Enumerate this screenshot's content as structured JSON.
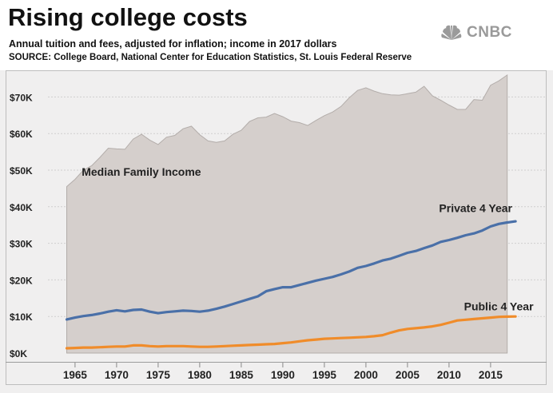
{
  "header": {
    "title": "Rising college costs",
    "subtitle": "Annual tuition and fees, adjusted for inflation; income in 2017 dollars",
    "source": "SOURCE: College Board, National Center for Education Statistics, St. Louis Federal Reserve",
    "logo_text": "CNBC"
  },
  "colors": {
    "income_fill": "#d5cfcc",
    "income_stroke": "#b3adaa",
    "private": "#4a70a8",
    "public": "#f08c2a",
    "plot_bg": "#f0efef",
    "grid": "#cfcfcf"
  },
  "chart_data": {
    "type": "area",
    "xlim": [
      1960,
      2021
    ],
    "ylim": [
      0,
      80000
    ],
    "ytick_values": [
      0,
      10000,
      20000,
      30000,
      40000,
      50000,
      60000,
      70000
    ],
    "ytick_labels": [
      "$0K",
      "$10K",
      "$20K",
      "$30K",
      "$40K",
      "$50K",
      "$60K",
      "$70K"
    ],
    "xtick_values": [
      1965,
      1970,
      1975,
      1980,
      1985,
      1990,
      1995,
      2000,
      2005,
      2010,
      2015
    ],
    "xtick_labels": [
      "1965",
      "1970",
      "1975",
      "1980",
      "1985",
      "1990",
      "1995",
      "2000",
      "2005",
      "2010",
      "2015"
    ],
    "grid": true,
    "series": [
      {
        "name": "Median Family Income",
        "kind": "area",
        "x": [
          1964,
          1965,
          1966,
          1967,
          1968,
          1969,
          1970,
          1971,
          1972,
          1973,
          1974,
          1975,
          1976,
          1977,
          1978,
          1979,
          1980,
          1981,
          1982,
          1983,
          1984,
          1985,
          1986,
          1987,
          1988,
          1989,
          1990,
          1991,
          1992,
          1993,
          1994,
          1995,
          1996,
          1997,
          1998,
          1999,
          2000,
          2001,
          2002,
          2003,
          2004,
          2005,
          2006,
          2007,
          2008,
          2009,
          2010,
          2011,
          2012,
          2013,
          2014,
          2015,
          2016,
          2017
        ],
        "values": [
          45500,
          47500,
          50000,
          51200,
          53500,
          56000,
          55800,
          55700,
          58500,
          59800,
          58200,
          57000,
          59000,
          59500,
          61300,
          62000,
          59700,
          58000,
          57600,
          58000,
          59800,
          60900,
          63300,
          64300,
          64500,
          65500,
          64600,
          63400,
          63000,
          62200,
          63600,
          64900,
          65900,
          67400,
          69800,
          71800,
          72500,
          71600,
          70900,
          70600,
          70500,
          70900,
          71300,
          72900,
          70300,
          69100,
          67800,
          66600,
          66600,
          69300,
          69100,
          73200,
          74400,
          76000
        ]
      },
      {
        "name": "Private 4 Year",
        "kind": "line",
        "x": [
          1964,
          1965,
          1966,
          1967,
          1968,
          1969,
          1970,
          1971,
          1972,
          1973,
          1974,
          1975,
          1976,
          1977,
          1978,
          1979,
          1980,
          1981,
          1982,
          1983,
          1984,
          1985,
          1986,
          1987,
          1988,
          1989,
          1990,
          1991,
          1992,
          1993,
          1994,
          1995,
          1996,
          1997,
          1998,
          1999,
          2000,
          2001,
          2002,
          2003,
          2004,
          2005,
          2006,
          2007,
          2008,
          2009,
          2010,
          2011,
          2012,
          2013,
          2014,
          2015,
          2016,
          2017,
          2018
        ],
        "values": [
          9200,
          9700,
          10100,
          10400,
          10800,
          11300,
          11700,
          11400,
          11800,
          11900,
          11300,
          10900,
          11200,
          11400,
          11600,
          11500,
          11300,
          11600,
          12100,
          12700,
          13400,
          14100,
          14800,
          15500,
          16900,
          17500,
          18000,
          18000,
          18600,
          19200,
          19800,
          20300,
          20800,
          21500,
          22300,
          23300,
          23800,
          24500,
          25300,
          25800,
          26600,
          27400,
          27900,
          28700,
          29400,
          30400,
          30900,
          31500,
          32200,
          32700,
          33500,
          34600,
          35300,
          35700,
          36000
        ]
      },
      {
        "name": "Public 4 Year",
        "kind": "line",
        "x": [
          1964,
          1965,
          1966,
          1967,
          1968,
          1969,
          1970,
          1971,
          1972,
          1973,
          1974,
          1975,
          1976,
          1977,
          1978,
          1979,
          1980,
          1981,
          1982,
          1983,
          1984,
          1985,
          1986,
          1987,
          1988,
          1989,
          1990,
          1991,
          1992,
          1993,
          1994,
          1995,
          1996,
          1997,
          1998,
          1999,
          2000,
          2001,
          2002,
          2003,
          2004,
          2005,
          2006,
          2007,
          2008,
          2009,
          2010,
          2011,
          2012,
          2013,
          2014,
          2015,
          2016,
          2017,
          2018
        ],
        "values": [
          1300,
          1400,
          1500,
          1500,
          1600,
          1700,
          1800,
          1800,
          2100,
          2100,
          1900,
          1800,
          1900,
          1900,
          1900,
          1800,
          1700,
          1700,
          1800,
          1900,
          2000,
          2100,
          2200,
          2300,
          2400,
          2500,
          2700,
          2900,
          3200,
          3500,
          3700,
          3900,
          4000,
          4100,
          4200,
          4300,
          4400,
          4600,
          4900,
          5600,
          6200,
          6600,
          6800,
          7000,
          7300,
          7700,
          8300,
          8900,
          9100,
          9300,
          9500,
          9700,
          9900,
          9950,
          10000
        ]
      }
    ],
    "annotations": [
      {
        "text": "Median Family Income",
        "x": 1965.8,
        "y": 48500
      },
      {
        "text": "Private 4 Year",
        "x": 2008.8,
        "y": 38500
      },
      {
        "text": "Public 4 Year",
        "x": 2011.8,
        "y": 11700
      }
    ]
  }
}
